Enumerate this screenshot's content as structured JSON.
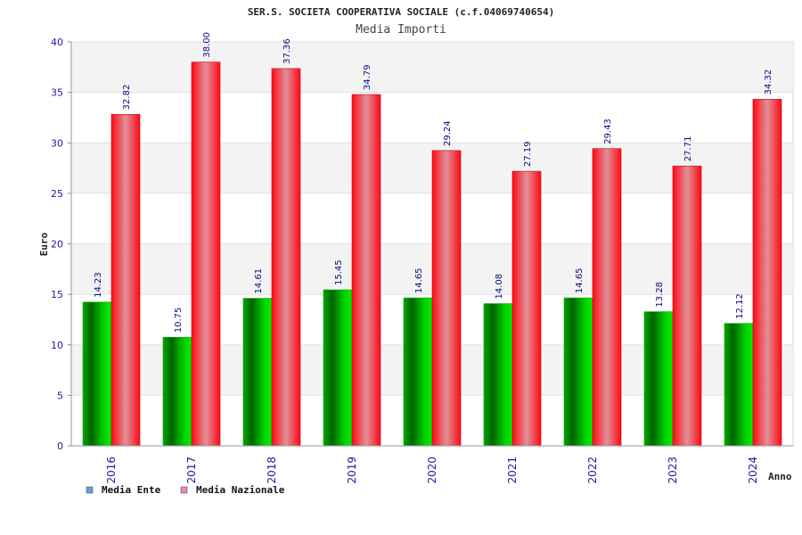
{
  "chart_data": {
    "type": "bar",
    "title": "SER.S. SOCIETA COOPERATIVA SOCIALE (c.f.04069740654)",
    "subtitle": "Media Importi",
    "ylabel": "Euro",
    "xlabel": "Anno",
    "ylim": [
      0,
      40
    ],
    "yticks": [
      0,
      5,
      10,
      15,
      20,
      25,
      30,
      35,
      40
    ],
    "grid": true,
    "legend_position": "bottom-left",
    "categories": [
      "2016",
      "2017",
      "2018",
      "2019",
      "2020",
      "2021",
      "2022",
      "2023",
      "2024"
    ],
    "series": [
      {
        "name": "Media Ente",
        "color": "#00b000",
        "legend_color": "#5aa0e6",
        "values": [
          14.23,
          10.75,
          14.61,
          15.45,
          14.65,
          14.08,
          14.65,
          13.28,
          12.12
        ],
        "labels": [
          "14.23",
          "10.75",
          "14.61",
          "15.45",
          "14.65",
          "14.08",
          "14.65",
          "13.28",
          "12.12"
        ]
      },
      {
        "name": "Media Nazionale",
        "color": "#f0101c",
        "legend_color": "#e28ab8",
        "values": [
          32.82,
          38.0,
          37.36,
          34.79,
          29.24,
          27.19,
          29.43,
          27.71,
          34.32
        ],
        "labels": [
          "32.82",
          "38.00",
          "37.36",
          "34.79",
          "29.24",
          "27.19",
          "29.43",
          "27.71",
          "34.32"
        ]
      }
    ]
  }
}
